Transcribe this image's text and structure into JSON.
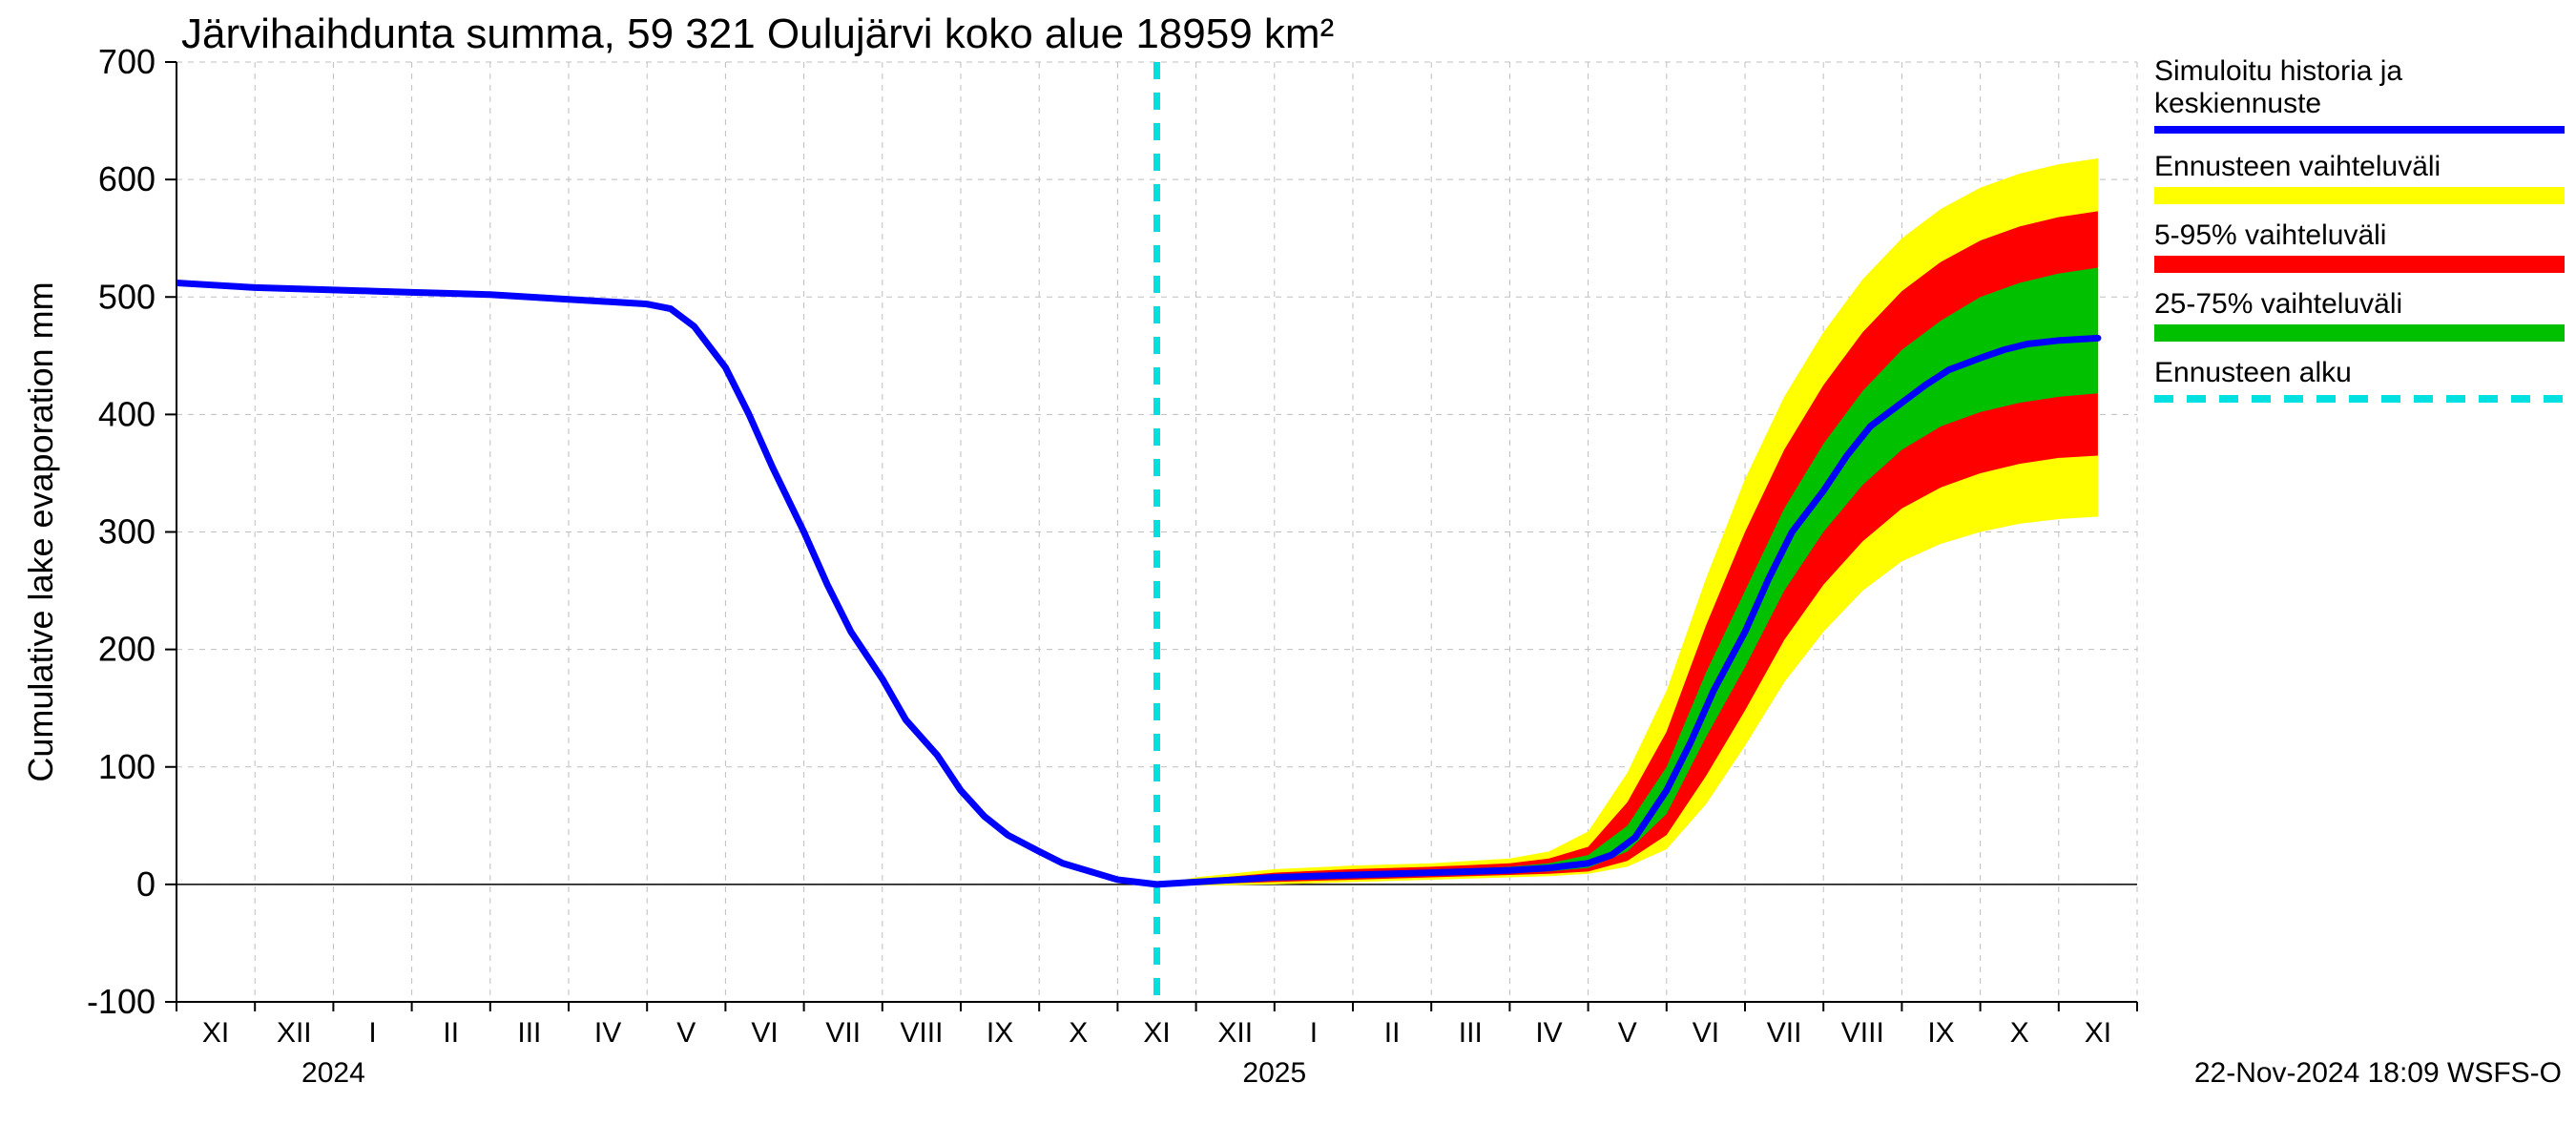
{
  "chart": {
    "type": "line-with-bands",
    "title": "Järvihaihdunta summa, 59 321 Oulujärvi koko alue 18959 km²",
    "ylabel": "Cumulative lake evaporation   mm",
    "footer": "22-Nov-2024 18:09 WSFS-O",
    "year_labels": [
      "2024",
      "2025"
    ],
    "ylim": [
      -100,
      700
    ],
    "yticks": [
      -100,
      0,
      100,
      200,
      300,
      400,
      500,
      600,
      700
    ],
    "background_color": "#ffffff",
    "grid_color": "#bfbfbf",
    "axis_color": "#000000",
    "title_fontsize": 44,
    "label_fontsize": 36,
    "tick_fontsize": 36,
    "month_fontsize": 30,
    "legend_fontsize": 30,
    "months": [
      "XI",
      "XII",
      "I",
      "II",
      "III",
      "IV",
      "V",
      "VI",
      "VII",
      "VIII",
      "IX",
      "X",
      "XI",
      "XII",
      "I",
      "II",
      "III",
      "IV",
      "V",
      "VI",
      "VII",
      "VIII",
      "IX",
      "X",
      "XI"
    ],
    "n_months": 25,
    "forecast_start_index": 12.5,
    "colors": {
      "sim_line": "#0000ff",
      "forecast_full": "#ffff00",
      "forecast_5_95": "#ff0000",
      "forecast_25_75": "#00c000",
      "forecast_start_line": "#00e0e0"
    },
    "line_widths": {
      "sim_line": 7,
      "band_edge": 0,
      "forecast_dash": 7
    },
    "sim_history": [
      [
        0,
        512
      ],
      [
        0.5,
        510
      ],
      [
        1,
        508
      ],
      [
        1.5,
        507
      ],
      [
        2,
        506
      ],
      [
        2.5,
        505
      ],
      [
        3,
        504
      ],
      [
        3.5,
        503
      ],
      [
        4,
        502
      ],
      [
        4.5,
        500
      ],
      [
        5,
        498
      ],
      [
        5.5,
        496
      ],
      [
        6,
        494
      ],
      [
        6.3,
        490
      ],
      [
        6.6,
        475
      ],
      [
        7,
        440
      ],
      [
        7.3,
        400
      ],
      [
        7.6,
        355
      ],
      [
        8,
        300
      ],
      [
        8.3,
        255
      ],
      [
        8.6,
        215
      ],
      [
        9,
        175
      ],
      [
        9.3,
        140
      ],
      [
        9.7,
        110
      ],
      [
        10,
        80
      ],
      [
        10.3,
        58
      ],
      [
        10.6,
        42
      ],
      [
        11,
        28
      ],
      [
        11.3,
        18
      ],
      [
        11.7,
        10
      ],
      [
        12,
        4
      ],
      [
        12.5,
        0
      ]
    ],
    "forecast_median": [
      [
        12.5,
        0
      ],
      [
        13,
        2
      ],
      [
        13.5,
        4
      ],
      [
        14,
        6
      ],
      [
        14.5,
        7
      ],
      [
        15,
        8
      ],
      [
        15.5,
        9
      ],
      [
        16,
        10
      ],
      [
        16.5,
        11
      ],
      [
        17,
        12
      ],
      [
        17.5,
        14
      ],
      [
        18,
        18
      ],
      [
        18.3,
        25
      ],
      [
        18.6,
        40
      ],
      [
        19,
        80
      ],
      [
        19.3,
        120
      ],
      [
        19.6,
        165
      ],
      [
        20,
        215
      ],
      [
        20.3,
        260
      ],
      [
        20.6,
        300
      ],
      [
        21,
        335
      ],
      [
        21.3,
        365
      ],
      [
        21.6,
        390
      ],
      [
        22,
        410
      ],
      [
        22.3,
        425
      ],
      [
        22.6,
        438
      ],
      [
        23,
        448
      ],
      [
        23.3,
        455
      ],
      [
        23.6,
        460
      ],
      [
        24,
        463
      ],
      [
        24.5,
        465
      ]
    ],
    "band_25_75": {
      "upper": [
        [
          12.5,
          0
        ],
        [
          13,
          3
        ],
        [
          14,
          8
        ],
        [
          15,
          10
        ],
        [
          16,
          12
        ],
        [
          17,
          15
        ],
        [
          17.5,
          18
        ],
        [
          18,
          25
        ],
        [
          18.5,
          50
        ],
        [
          19,
          100
        ],
        [
          19.5,
          180
        ],
        [
          20,
          250
        ],
        [
          20.5,
          320
        ],
        [
          21,
          375
        ],
        [
          21.5,
          420
        ],
        [
          22,
          455
        ],
        [
          22.5,
          480
        ],
        [
          23,
          500
        ],
        [
          23.5,
          512
        ],
        [
          24,
          520
        ],
        [
          24.5,
          525
        ]
      ],
      "lower": [
        [
          12.5,
          0
        ],
        [
          13,
          1
        ],
        [
          14,
          4
        ],
        [
          15,
          6
        ],
        [
          16,
          8
        ],
        [
          17,
          10
        ],
        [
          17.5,
          11
        ],
        [
          18,
          14
        ],
        [
          18.5,
          28
        ],
        [
          19,
          60
        ],
        [
          19.5,
          125
        ],
        [
          20,
          185
        ],
        [
          20.5,
          250
        ],
        [
          21,
          300
        ],
        [
          21.5,
          340
        ],
        [
          22,
          370
        ],
        [
          22.5,
          390
        ],
        [
          23,
          402
        ],
        [
          23.5,
          410
        ],
        [
          24,
          415
        ],
        [
          24.5,
          418
        ]
      ]
    },
    "band_5_95": {
      "upper": [
        [
          12.5,
          0
        ],
        [
          13,
          4
        ],
        [
          14,
          10
        ],
        [
          15,
          13
        ],
        [
          16,
          15
        ],
        [
          17,
          18
        ],
        [
          17.5,
          22
        ],
        [
          18,
          32
        ],
        [
          18.5,
          70
        ],
        [
          19,
          130
        ],
        [
          19.5,
          220
        ],
        [
          20,
          300
        ],
        [
          20.5,
          370
        ],
        [
          21,
          425
        ],
        [
          21.5,
          470
        ],
        [
          22,
          505
        ],
        [
          22.5,
          530
        ],
        [
          23,
          548
        ],
        [
          23.5,
          560
        ],
        [
          24,
          568
        ],
        [
          24.5,
          573
        ]
      ],
      "lower": [
        [
          12.5,
          0
        ],
        [
          13,
          0
        ],
        [
          14,
          2
        ],
        [
          15,
          4
        ],
        [
          16,
          6
        ],
        [
          17,
          8
        ],
        [
          17.5,
          9
        ],
        [
          18,
          11
        ],
        [
          18.5,
          20
        ],
        [
          19,
          42
        ],
        [
          19.5,
          92
        ],
        [
          20,
          148
        ],
        [
          20.5,
          208
        ],
        [
          21,
          255
        ],
        [
          21.5,
          292
        ],
        [
          22,
          320
        ],
        [
          22.5,
          338
        ],
        [
          23,
          350
        ],
        [
          23.5,
          358
        ],
        [
          24,
          363
        ],
        [
          24.5,
          365
        ]
      ]
    },
    "band_full": {
      "upper": [
        [
          12.5,
          0
        ],
        [
          13,
          6
        ],
        [
          14,
          13
        ],
        [
          15,
          16
        ],
        [
          16,
          18
        ],
        [
          17,
          22
        ],
        [
          17.5,
          28
        ],
        [
          18,
          45
        ],
        [
          18.5,
          95
        ],
        [
          19,
          165
        ],
        [
          19.5,
          260
        ],
        [
          20,
          345
        ],
        [
          20.5,
          415
        ],
        [
          21,
          470
        ],
        [
          21.5,
          515
        ],
        [
          22,
          550
        ],
        [
          22.5,
          575
        ],
        [
          23,
          593
        ],
        [
          23.5,
          605
        ],
        [
          24,
          613
        ],
        [
          24.5,
          618
        ]
      ],
      "lower": [
        [
          12.5,
          0
        ],
        [
          13,
          -1
        ],
        [
          14,
          0
        ],
        [
          15,
          2
        ],
        [
          16,
          4
        ],
        [
          17,
          6
        ],
        [
          17.5,
          7
        ],
        [
          18,
          9
        ],
        [
          18.5,
          15
        ],
        [
          19,
          30
        ],
        [
          19.5,
          68
        ],
        [
          20,
          118
        ],
        [
          20.5,
          172
        ],
        [
          21,
          215
        ],
        [
          21.5,
          250
        ],
        [
          22,
          275
        ],
        [
          22.5,
          290
        ],
        [
          23,
          300
        ],
        [
          23.5,
          307
        ],
        [
          24,
          311
        ],
        [
          24.5,
          313
        ]
      ]
    },
    "legend": {
      "items": [
        {
          "label_lines": [
            "Simuloitu historia ja",
            "keskiennuste"
          ],
          "type": "line",
          "color": "#0000ff"
        },
        {
          "label_lines": [
            "Ennusteen vaihteluväli"
          ],
          "type": "swatch",
          "color": "#ffff00"
        },
        {
          "label_lines": [
            "5-95% vaihteluväli"
          ],
          "type": "swatch",
          "color": "#ff0000"
        },
        {
          "label_lines": [
            "25-75% vaihteluväli"
          ],
          "type": "swatch",
          "color": "#00c000"
        },
        {
          "label_lines": [
            "Ennusteen alku"
          ],
          "type": "dash",
          "color": "#00e0e0"
        }
      ]
    }
  }
}
